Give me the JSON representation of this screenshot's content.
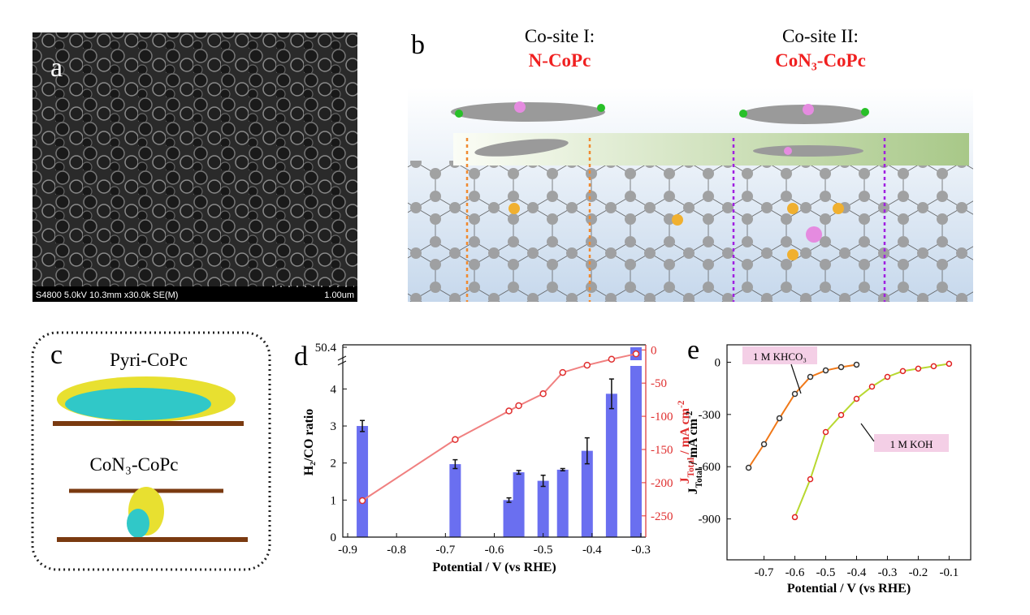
{
  "panels": {
    "a": {
      "label": "a",
      "caption": "S4800 5.0kV 10.3mm x30.0k SE(M)",
      "scale": "1.00um"
    },
    "b": {
      "label": "b",
      "site1_title": "Co-site I:",
      "site1_name": "N-CoPc",
      "site2_title": "Co-site II:",
      "site2_name": "CoN₃-CoPc"
    },
    "c": {
      "label": "c",
      "top": "Pyri-CoPc",
      "bottom": "CoN₃-CoPc"
    },
    "d": {
      "label": "d"
    },
    "e": {
      "label": "e"
    }
  },
  "chart_data": [
    {
      "type": "bar",
      "xlabel": "Potential / V (vs RHE)",
      "ylabel": "H₂/CO ratio",
      "y2label": {
        "text": "J",
        "sub": "Total",
        "rest": " / mA cm",
        "sup": "-2"
      },
      "x": [
        -0.87,
        -0.68,
        -0.57,
        -0.55,
        -0.5,
        -0.46,
        -0.41,
        -0.36,
        -0.31
      ],
      "values": [
        3.0,
        1.97,
        1.0,
        1.75,
        1.52,
        1.82,
        2.33,
        3.87,
        50.4
      ],
      "errors": [
        0.15,
        0.12,
        0.06,
        0.05,
        0.15,
        0.03,
        0.35,
        0.4,
        null
      ],
      "color": "#6a6ff0",
      "xlim": [
        -0.91,
        -0.29
      ],
      "xticks": [
        -0.9,
        -0.8,
        -0.7,
        -0.6,
        -0.5,
        -0.4,
        -0.3
      ],
      "ylim": [
        0,
        50.4
      ],
      "yticks": [
        0,
        1,
        2,
        3,
        4,
        50.4
      ],
      "y_break": [
        4.6,
        50.2
      ],
      "y2lim": [
        -282,
        4
      ],
      "y2ticks": [
        0,
        -50,
        -100,
        -150,
        -200,
        -250
      ],
      "y2color": "#e03030",
      "series": [
        {
          "color": "#e03030",
          "axis": "y2",
          "values": [
            -227,
            -135,
            -92,
            -84,
            -66,
            -34,
            -23,
            -14,
            -6
          ]
        }
      ]
    },
    {
      "type": "line",
      "xlabel": "Potential / V (vs RHE)",
      "ylabel": {
        "text": "J",
        "sub": "Total",
        "rest": " / mA cm",
        "sup": "-2"
      },
      "xlim": [
        -0.82,
        -0.03
      ],
      "xticks": [
        -0.7,
        -0.6,
        -0.5,
        -0.4,
        -0.3,
        -0.2,
        -0.1
      ],
      "ylim": [
        -1135,
        100
      ],
      "yticks": [
        0,
        -300,
        -600,
        -900
      ],
      "series": [
        {
          "name": "1 M KHCO₃",
          "color": "#333333",
          "fit_color": "#f07818",
          "x": [
            -0.75,
            -0.7,
            -0.65,
            -0.6,
            -0.55,
            -0.5,
            -0.45,
            -0.4
          ],
          "values": [
            -606,
            -471,
            -322,
            -182,
            -84,
            -47,
            -28,
            -14
          ]
        },
        {
          "name": "1 M KOH",
          "color": "#e02020",
          "fit_color": "#b8d830",
          "x": [
            -0.6,
            -0.55,
            -0.5,
            -0.45,
            -0.4,
            -0.35,
            -0.3,
            -0.25,
            -0.2,
            -0.15,
            -0.1
          ],
          "values": [
            -890,
            -672,
            -401,
            -303,
            -210,
            -140,
            -84,
            -51,
            -37,
            -23,
            -9
          ]
        }
      ]
    }
  ]
}
